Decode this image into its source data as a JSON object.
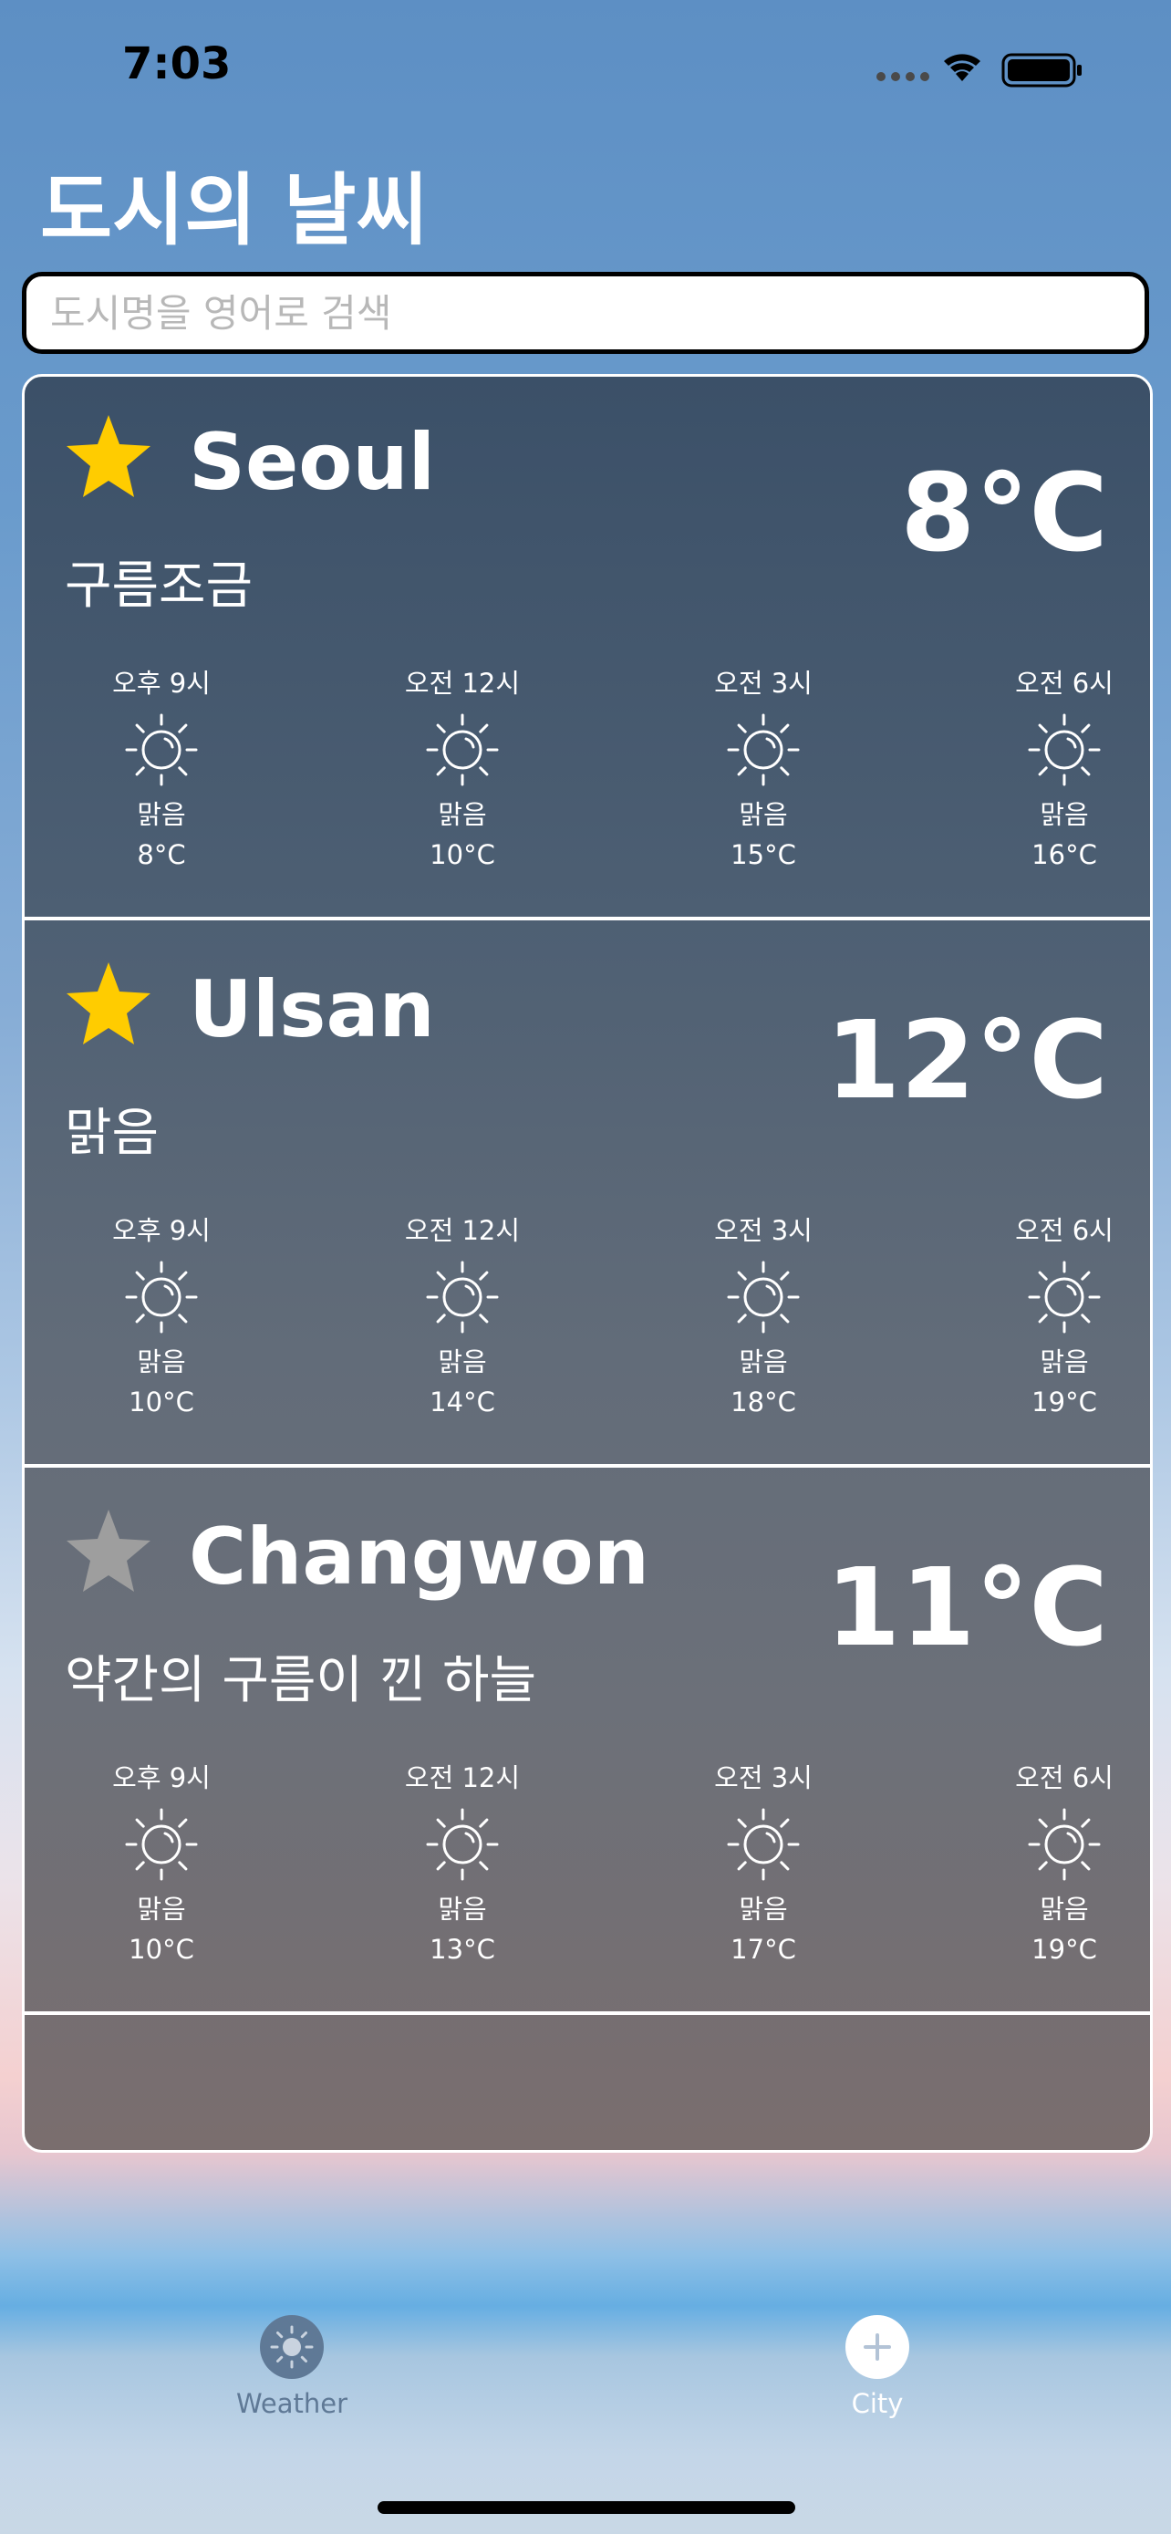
{
  "status_bar": {
    "time": "7:03"
  },
  "page": {
    "title": "도시의 날씨"
  },
  "search": {
    "placeholder": "도시명을 영어로 검색",
    "value": ""
  },
  "cities": [
    {
      "name": "Seoul",
      "favorite": true,
      "temp": "8°C",
      "description": "구름조금",
      "hourly": [
        {
          "time": "오후 9시",
          "icon": "sun-icon",
          "condition": "맑음",
          "temp": "8°C"
        },
        {
          "time": "오전 12시",
          "icon": "sun-icon",
          "condition": "맑음",
          "temp": "10°C"
        },
        {
          "time": "오전 3시",
          "icon": "sun-icon",
          "condition": "맑음",
          "temp": "15°C"
        },
        {
          "time": "오전 6시",
          "icon": "sun-icon",
          "condition": "맑음",
          "temp": "16°C"
        }
      ]
    },
    {
      "name": "Ulsan",
      "favorite": true,
      "temp": "12°C",
      "description": "맑음",
      "hourly": [
        {
          "time": "오후 9시",
          "icon": "sun-icon",
          "condition": "맑음",
          "temp": "10°C"
        },
        {
          "time": "오전 12시",
          "icon": "sun-icon",
          "condition": "맑음",
          "temp": "14°C"
        },
        {
          "time": "오전 3시",
          "icon": "sun-icon",
          "condition": "맑음",
          "temp": "18°C"
        },
        {
          "time": "오전 6시",
          "icon": "sun-icon",
          "condition": "맑음",
          "temp": "19°C"
        }
      ]
    },
    {
      "name": "Changwon",
      "favorite": false,
      "temp": "11°C",
      "description": "약간의 구름이 낀 하늘",
      "hourly": [
        {
          "time": "오후 9시",
          "icon": "sun-icon",
          "condition": "맑음",
          "temp": "10°C"
        },
        {
          "time": "오전 12시",
          "icon": "sun-icon",
          "condition": "맑음",
          "temp": "13°C"
        },
        {
          "time": "오전 3시",
          "icon": "sun-icon",
          "condition": "맑음",
          "temp": "17°C"
        },
        {
          "time": "오전 6시",
          "icon": "sun-icon",
          "condition": "맑음",
          "temp": "19°C"
        }
      ]
    }
  ],
  "tabs": [
    {
      "label": "Weather",
      "icon": "weather-icon",
      "selected": true
    },
    {
      "label": "City",
      "icon": "plus-icon",
      "selected": false
    }
  ],
  "colors": {
    "star_active": "#FFCC00",
    "star_inactive": "#9E9E9E",
    "tab_selected": "#5F7996",
    "tab_unselected": "#FFFFFF"
  }
}
